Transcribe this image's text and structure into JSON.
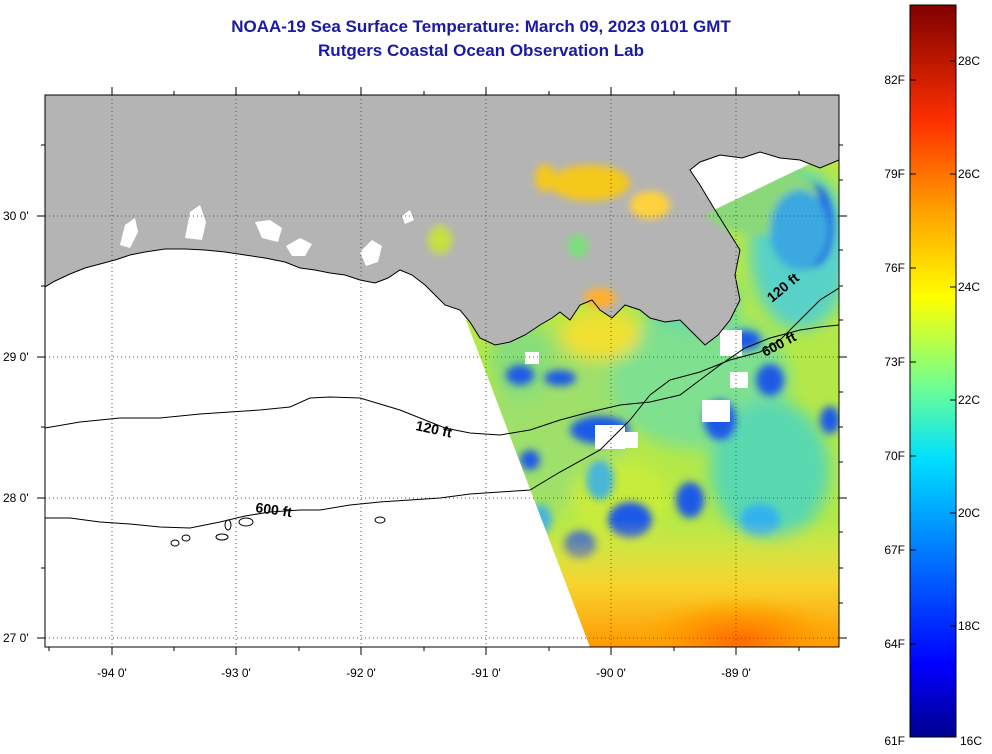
{
  "header": {
    "title_line1": "NOAA-19 Sea Surface Temperature:  March 09, 2023 0101 GMT",
    "title_line2": "Rutgers Coastal Ocean Observation Lab"
  },
  "map": {
    "lon_labels": [
      "-94 0'",
      "-93 0'",
      "-92 0'",
      "-91 0'",
      "-90 0'",
      "-89 0'"
    ],
    "lat_labels": [
      "30 0'",
      "29 0'",
      "28 0'",
      "27 0'"
    ],
    "contour_labels": [
      "120 ft",
      "600 ft",
      "120 ft",
      "600 ft"
    ],
    "colors": {
      "land": "#b4b4b4",
      "ocean_nodata": "#ffffff",
      "title": "#1a1aa6"
    }
  },
  "colorbar": {
    "fahrenheit": [
      "82F",
      "79F",
      "76F",
      "73F",
      "70F",
      "67F",
      "64F",
      "61F"
    ],
    "celsius": [
      "28C",
      "26C",
      "24C",
      "22C",
      "20C",
      "18C",
      "16C"
    ],
    "range_c": [
      16,
      29
    ]
  }
}
